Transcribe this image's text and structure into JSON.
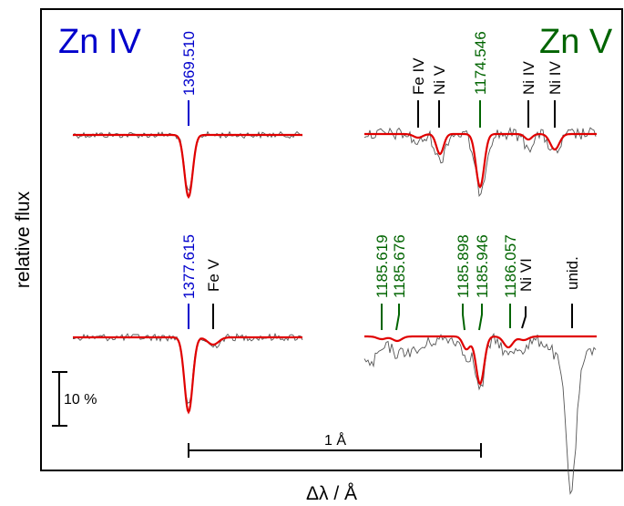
{
  "chart_data": {
    "type": "line",
    "title": "",
    "ylabel": "relative flux",
    "xlabel": "Δλ / Å",
    "colors": {
      "zn4": "#0000cc",
      "zn5": "#006400",
      "model": "#e00000",
      "observed": "#555555",
      "other": "#000000"
    },
    "panels": [
      {
        "label": "Zn IV",
        "color": "#0000cc",
        "upper_line": {
          "wavelength": "1369.510",
          "ion": "Zn IV"
        },
        "lower_line": {
          "wavelength": "1377.615",
          "ion": "Zn IV"
        },
        "other_lines": [
          {
            "label": "Fe V",
            "row": "lower"
          }
        ]
      },
      {
        "label": "Zn V",
        "color": "#006400",
        "upper_lines": [
          {
            "label": "Fe IV",
            "type": "other"
          },
          {
            "label": "Ni V",
            "type": "other"
          },
          {
            "label": "1174.546",
            "type": "zn"
          },
          {
            "label": "Ni IV",
            "type": "other"
          },
          {
            "label": "Ni IV",
            "type": "other"
          }
        ],
        "lower_lines": [
          {
            "label": "1185.619",
            "type": "zn"
          },
          {
            "label": "1185.676",
            "type": "zn"
          },
          {
            "label": "1185.898",
            "type": "zn"
          },
          {
            "label": "1185.946",
            "type": "zn"
          },
          {
            "label": "1186.057",
            "type": "zn"
          },
          {
            "label": "Ni VI",
            "type": "other"
          },
          {
            "label": "unid.",
            "type": "other"
          }
        ]
      }
    ],
    "scale_bar_flux": "10 %",
    "scale_bar_wavelength": "1 Å",
    "series": [
      {
        "name": "",
        "role": "observed"
      },
      {
        "name": "",
        "role": "model"
      }
    ]
  }
}
